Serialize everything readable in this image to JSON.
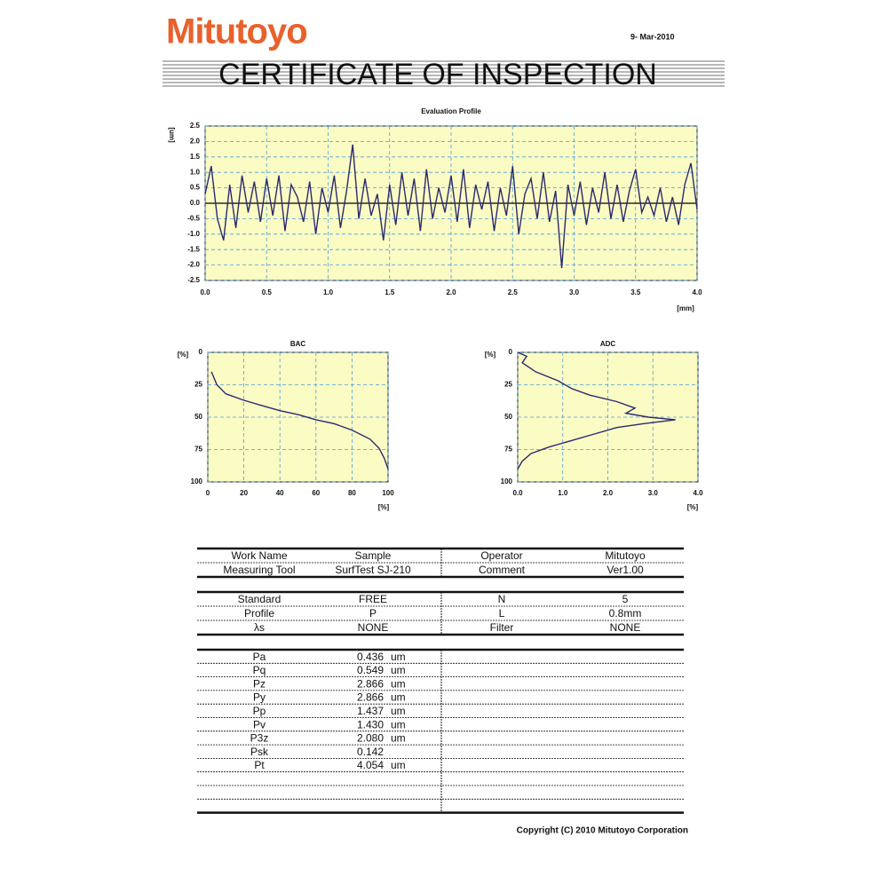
{
  "header": {
    "logo": "Mitutoyo",
    "date": "9- Mar-2010",
    "title": "CERTIFICATE OF INSPECTION"
  },
  "chart_data": [
    {
      "type": "line",
      "title": "Evaluation Profile",
      "y_label": "[um]",
      "x_label": "[mm]",
      "color": "#2a2a6e",
      "grid": true,
      "x": [
        0,
        0.05,
        0.1,
        0.15,
        0.2,
        0.25,
        0.3,
        0.35,
        0.4,
        0.45,
        0.5,
        0.55,
        0.6,
        0.65,
        0.7,
        0.75,
        0.8,
        0.85,
        0.9,
        0.95,
        1.0,
        1.05,
        1.1,
        1.15,
        1.2,
        1.25,
        1.3,
        1.35,
        1.4,
        1.45,
        1.5,
        1.55,
        1.6,
        1.65,
        1.7,
        1.75,
        1.8,
        1.85,
        1.9,
        1.95,
        2.0,
        2.05,
        2.1,
        2.15,
        2.2,
        2.25,
        2.3,
        2.35,
        2.4,
        2.45,
        2.5,
        2.55,
        2.6,
        2.65,
        2.7,
        2.75,
        2.8,
        2.85,
        2.9,
        2.95,
        3.0,
        3.05,
        3.1,
        3.15,
        3.2,
        3.25,
        3.3,
        3.35,
        3.4,
        3.45,
        3.5,
        3.55,
        3.6,
        3.65,
        3.7,
        3.75,
        3.8,
        3.85,
        3.9,
        3.95,
        4.0
      ],
      "values": [
        0.3,
        1.2,
        -0.5,
        -1.2,
        0.6,
        -0.8,
        0.9,
        -0.3,
        0.7,
        -0.6,
        0.8,
        -0.4,
        0.9,
        -0.9,
        0.6,
        0.2,
        -0.6,
        0.7,
        -1.0,
        0.5,
        -0.3,
        0.9,
        -0.8,
        0.4,
        1.9,
        -0.5,
        0.8,
        -0.4,
        0.3,
        -1.2,
        0.6,
        -0.7,
        1.0,
        -0.4,
        0.8,
        -0.9,
        1.1,
        -0.5,
        0.5,
        -0.3,
        0.9,
        -0.6,
        1.1,
        -0.8,
        0.6,
        -0.2,
        0.7,
        -0.9,
        0.5,
        -0.4,
        1.2,
        -1.0,
        0.3,
        0.8,
        -0.5,
        1.0,
        -0.6,
        0.4,
        -2.1,
        0.6,
        -0.4,
        0.7,
        -0.7,
        0.5,
        -0.3,
        1.0,
        -0.5,
        0.6,
        -0.6,
        0.4,
        1.1,
        -0.3,
        0.2,
        -0.4,
        0.5,
        -0.6,
        0.2,
        -0.7,
        0.6,
        1.3,
        -0.2
      ],
      "xlim": [
        0,
        4
      ],
      "xticks": [
        {
          "value": 0,
          "label": "0.0"
        },
        {
          "value": 0.5,
          "label": "0.5"
        },
        {
          "value": 1,
          "label": "1.0"
        },
        {
          "value": 1.5,
          "label": "1.5"
        },
        {
          "value": 2,
          "label": "2.0"
        },
        {
          "value": 2.5,
          "label": "2.5"
        },
        {
          "value": 3,
          "label": "3.0"
        },
        {
          "value": 3.5,
          "label": "3.5"
        },
        {
          "value": 4,
          "label": "4.0"
        }
      ],
      "ylim": [
        -2.5,
        2.5
      ],
      "yticks": [
        2.5,
        {
          "value": 2,
          "label": "2.0"
        },
        1.5,
        {
          "value": 1,
          "label": "1.0"
        },
        0.5,
        {
          "value": 0,
          "label": "0.0"
        },
        -0.5,
        {
          "value": -1,
          "label": "-1.0"
        },
        -1.5,
        {
          "value": -2,
          "label": "-2.0"
        },
        -2.5
      ]
    },
    {
      "type": "line",
      "title": "BAC",
      "y_label": "[%]",
      "x_label": "[%]",
      "color": "#2a2a6e",
      "grid": true,
      "x": [
        2,
        5,
        10,
        20,
        30,
        40,
        50,
        60,
        70,
        80,
        90,
        95,
        98,
        100
      ],
      "values": [
        15,
        25,
        32,
        37,
        41,
        45,
        48,
        52,
        55,
        60,
        67,
        74,
        82,
        90
      ],
      "xlim": [
        0,
        100
      ],
      "xticks": [
        0,
        20,
        40,
        60,
        80,
        100
      ],
      "ylim": [
        100,
        0
      ],
      "yticks": [
        0,
        25,
        50,
        75,
        100
      ]
    },
    {
      "type": "line",
      "title": "ADC",
      "y_label": "[%]",
      "x_label": "[%]",
      "color": "#2a2a6e",
      "grid": true,
      "x": [
        0,
        0.2,
        0.1,
        0.4,
        0.9,
        1.2,
        1.6,
        2.2,
        2.6,
        2.4,
        2.9,
        3.5,
        2.8,
        2.2,
        1.7,
        1.2,
        0.7,
        0.3,
        0.1,
        0
      ],
      "values": [
        0,
        3,
        8,
        15,
        22,
        28,
        33,
        38,
        43,
        47,
        50,
        52,
        55,
        58,
        63,
        68,
        73,
        78,
        84,
        90
      ],
      "xlim": [
        0,
        4
      ],
      "xticks": [
        {
          "value": 0,
          "label": "0.0"
        },
        {
          "value": 1,
          "label": "1.0"
        },
        {
          "value": 2,
          "label": "2.0"
        },
        {
          "value": 3,
          "label": "3.0"
        },
        {
          "value": 4,
          "label": "4.0"
        }
      ],
      "ylim": [
        100,
        0
      ],
      "yticks": [
        0,
        25,
        50,
        75,
        100
      ]
    }
  ],
  "table": {
    "info_rows": [
      [
        "Work Name",
        "Sample",
        "Operator",
        "Mitutoyo"
      ],
      [
        "Measuring Tool",
        "SurfTest SJ-210",
        "Comment",
        "Ver1.00"
      ]
    ],
    "condition_rows": [
      [
        "Standard",
        "FREE",
        "N",
        "5"
      ],
      [
        "Profile",
        "P",
        "L",
        "0.8mm"
      ],
      [
        "λs",
        "NONE",
        "Filter",
        "NONE"
      ]
    ],
    "result_rows": [
      [
        "Pa",
        "0.436",
        "um"
      ],
      [
        "Pq",
        "0.549",
        "um"
      ],
      [
        "Pz",
        "2.866",
        "um"
      ],
      [
        "Py",
        "2.866",
        "um"
      ],
      [
        "Pp",
        "1.437",
        "um"
      ],
      [
        "Pv",
        "1.430",
        "um"
      ],
      [
        "P3z",
        "2.080",
        "um"
      ],
      [
        "Psk",
        "0.142"
      ],
      [
        "Pt",
        "4.054",
        "um"
      ]
    ]
  },
  "footer": "Copyright (C) 2010 Mitutoyo Corporation"
}
